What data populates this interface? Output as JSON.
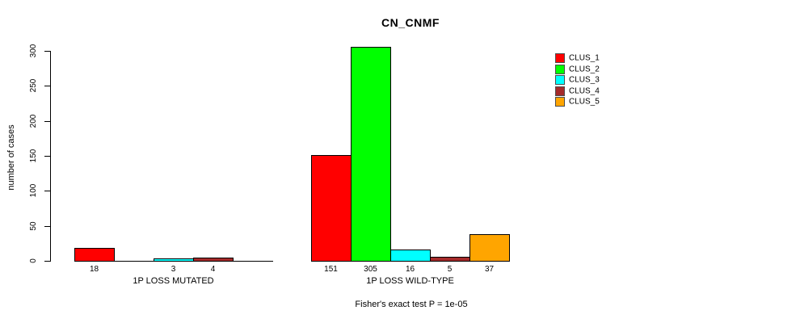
{
  "title": "CN_CNMF",
  "footer": "Fisher's exact test P = 1e-05",
  "chart_data": {
    "type": "bar",
    "title": "CN_CNMF",
    "xlabel": "",
    "ylabel": "number of cases",
    "ylim": [
      0,
      300
    ],
    "yticks": [
      0,
      50,
      100,
      150,
      200,
      250,
      300
    ],
    "grid": false,
    "legend_position": "right",
    "categories": [
      "1P LOSS MUTATED",
      "1P LOSS WILD-TYPE"
    ],
    "series": [
      {
        "name": "CLUS_1",
        "color": "#FF0000",
        "values": [
          18,
          151
        ]
      },
      {
        "name": "CLUS_2",
        "color": "#00FF00",
        "values": [
          0,
          305
        ]
      },
      {
        "name": "CLUS_3",
        "color": "#00FFFF",
        "values": [
          3,
          16
        ]
      },
      {
        "name": "CLUS_4",
        "color": "#A52A2A",
        "values": [
          4,
          5
        ]
      },
      {
        "name": "CLUS_5",
        "color": "#FFA500",
        "values": [
          0,
          37
        ]
      }
    ],
    "bar_value_labels": [
      [
        "18",
        "",
        "3",
        "4",
        ""
      ],
      [
        "151",
        "305",
        "16",
        "5",
        "37"
      ]
    ],
    "annotation": "Fisher's exact test P = 1e-05"
  }
}
